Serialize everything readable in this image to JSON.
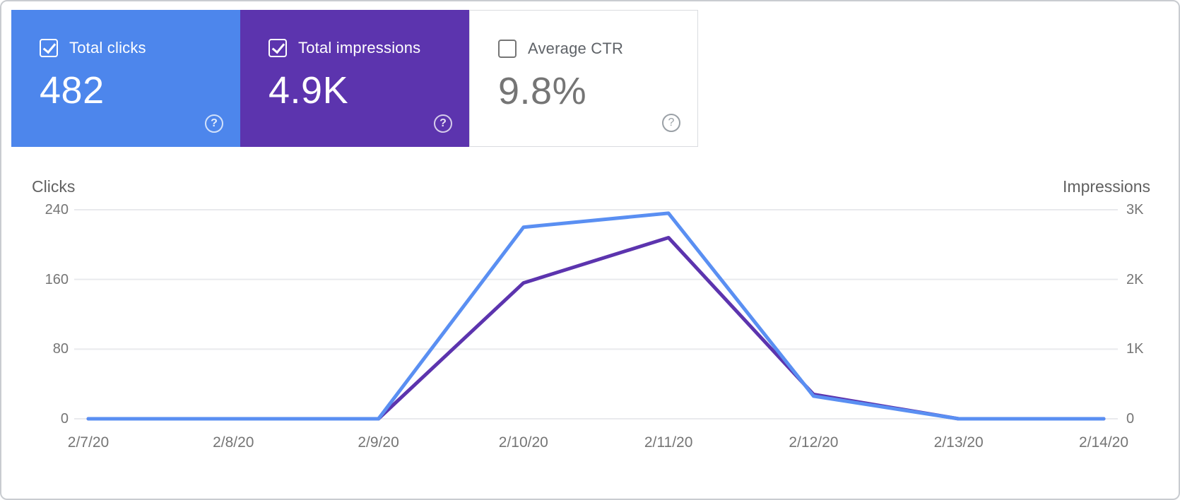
{
  "cards": [
    {
      "label": "Total clicks",
      "value": "482",
      "checked": true,
      "bg": "#4d86ec",
      "style": "colored"
    },
    {
      "label": "Total impressions",
      "value": "4.9K",
      "checked": true,
      "bg": "#5c34ae",
      "style": "colored"
    },
    {
      "label": "Average CTR",
      "value": "9.8%",
      "checked": false,
      "bg": "#ffffff",
      "style": "plain"
    }
  ],
  "help_icon_glyph": "?",
  "chart_data": {
    "type": "line",
    "categories": [
      "2/7/20",
      "2/8/20",
      "2/9/20",
      "2/10/20",
      "2/11/20",
      "2/12/20",
      "2/13/20",
      "2/14/20"
    ],
    "series": [
      {
        "name": "Clicks",
        "axis": "left",
        "color": "#5a8ff2",
        "values": [
          0,
          0,
          0,
          220,
          236,
          26,
          0,
          0
        ]
      },
      {
        "name": "Impressions",
        "axis": "right",
        "color": "#5c34ae",
        "values": [
          0,
          0,
          0,
          1950,
          2600,
          350,
          0,
          0
        ]
      }
    ],
    "left_axis": {
      "title": "Clicks",
      "tick_labels": [
        "0",
        "80",
        "160",
        "240"
      ],
      "tick_values": [
        0,
        80,
        160,
        240
      ],
      "max": 240
    },
    "right_axis": {
      "title": "Impressions",
      "tick_labels": [
        "0",
        "1K",
        "2K",
        "3K"
      ],
      "tick_values": [
        0,
        1000,
        2000,
        3000
      ],
      "max": 3000
    },
    "grid": true,
    "legend": "none",
    "gridline_color": "#e9eaed"
  }
}
